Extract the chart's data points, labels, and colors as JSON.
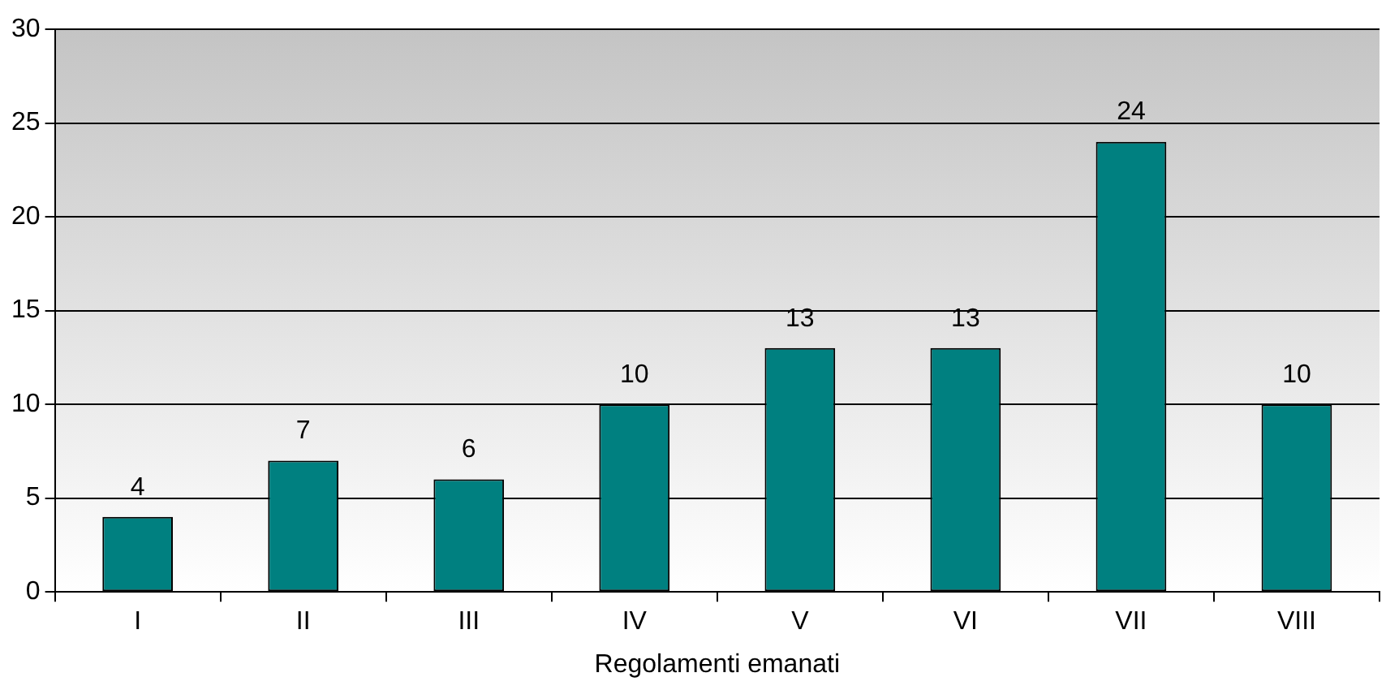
{
  "chart_data": {
    "type": "bar",
    "xlabel": "Regolamenti emanati",
    "categories": [
      "I",
      "II",
      "III",
      "IV",
      "V",
      "VI",
      "VII",
      "VIII"
    ],
    "values": [
      4,
      7,
      6,
      10,
      13,
      13,
      24,
      10
    ],
    "color": "#008080",
    "ylim": [
      0,
      30
    ],
    "yticks": [
      0,
      5,
      10,
      15,
      20,
      25,
      30
    ],
    "grid": "y",
    "legend": false,
    "data_labels": true
  }
}
